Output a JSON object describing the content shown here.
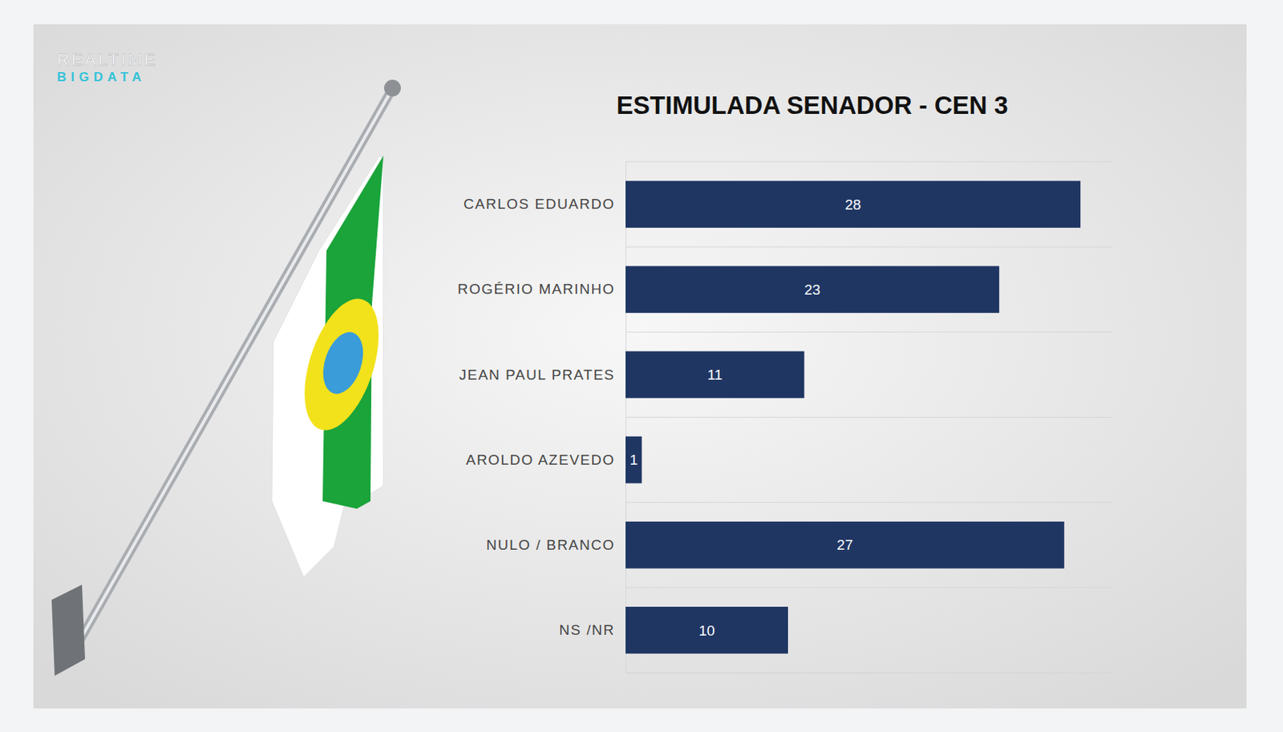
{
  "chart_data": {
    "type": "bar",
    "orientation": "horizontal",
    "title": "ESTIMULADA SENADOR - CEN 3",
    "annotations": [
      "REALTIME",
      "BIGDATA"
    ],
    "categories": [
      "CARLOS EDUARDO",
      "ROGÉRIO MARINHO",
      "JEAN PAUL PRATES",
      "AROLDO AZEVEDO",
      "NULO / BRANCO",
      "NS /NR"
    ],
    "values": [
      28,
      23,
      11,
      1,
      27,
      10
    ],
    "color": "#1f3663",
    "xlim": [
      0,
      30
    ],
    "data_labels": true,
    "tick_labels": "y",
    "grid": true
  }
}
